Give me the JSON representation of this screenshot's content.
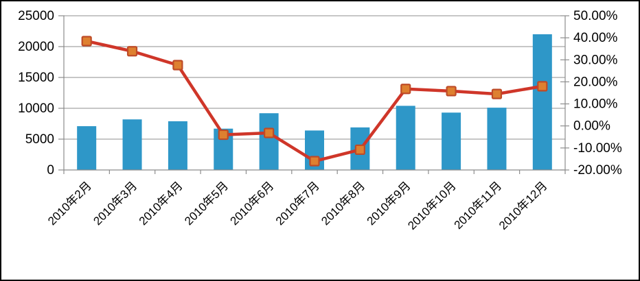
{
  "chart_data": {
    "type": "combo",
    "subtype": "bar+line, dual axis",
    "categories": [
      "2010年2月",
      "2010年3月",
      "2010年4月",
      "2010年5月",
      "2010年6月",
      "2010年7月",
      "2010年8月",
      "2010年9月",
      "2010年10月",
      "2010年11月",
      "2010年12月"
    ],
    "series": [
      {
        "type": "bar",
        "axis": "left",
        "values": [
          7100,
          8200,
          7900,
          6700,
          9200,
          6400,
          6900,
          10400,
          9300,
          10100,
          22000
        ]
      },
      {
        "type": "line",
        "axis": "right",
        "marker": "square",
        "values": [
          38.5,
          33.9,
          27.6,
          -4.0,
          -3.2,
          -16.0,
          -10.8,
          16.8,
          15.8,
          14.5,
          18.0
        ]
      }
    ],
    "left_axis": {
      "min": 0,
      "max": 25000,
      "step": 5000,
      "tick_labels": [
        "0",
        "5000",
        "10000",
        "15000",
        "20000",
        "25000"
      ]
    },
    "right_axis": {
      "min": -20,
      "max": 50,
      "step": 10,
      "tick_labels": [
        "-20.00%",
        "-10.00%",
        "0.00%",
        "10.00%",
        "20.00%",
        "30.00%",
        "40.00%",
        "50.00%"
      ]
    },
    "grid": "horizontal",
    "legend": "none",
    "x_label_rotation_deg": -45,
    "colors": {
      "bar": "#2E97C8",
      "line": "#CF3629",
      "marker_fill": "#DE8030",
      "marker_border": "#BE4B27",
      "gridline": "#8C8C8C",
      "axis": "#8C8C8C",
      "text": "#000000",
      "background": "#FFFFFF",
      "outer_border": "#000000"
    }
  }
}
